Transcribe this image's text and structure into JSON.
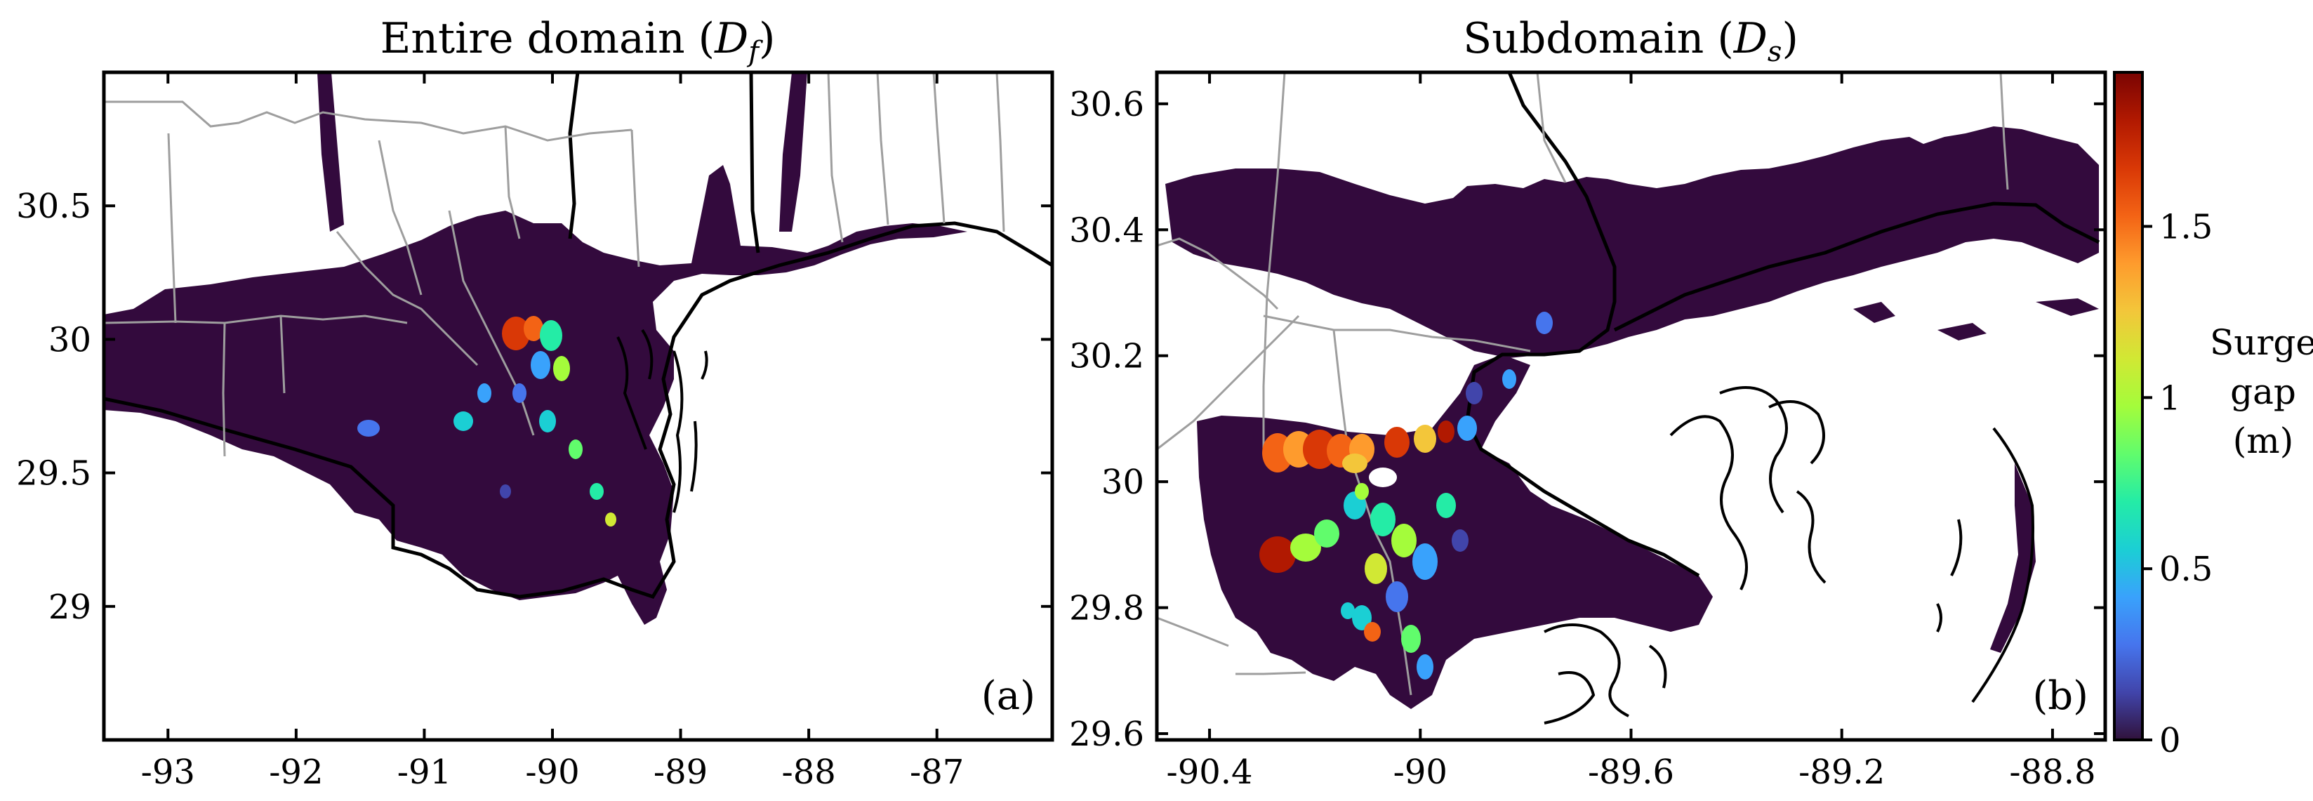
{
  "chart_data": [
    {
      "type": "heatmap",
      "title_main": "Entire domain (",
      "title_sym": "D",
      "title_sub": "f",
      "title_close": ")",
      "panel_label": "(a)",
      "xlim": [
        -93.5,
        -86.1
      ],
      "ylim": [
        28.5,
        31.0
      ],
      "xticks": [
        -93,
        -92,
        -91,
        -90,
        -89,
        -88,
        -87
      ],
      "xtick_labels": [
        "-93",
        "-92",
        "-91",
        "-90",
        "-89",
        "-88",
        "-87"
      ],
      "yticks": [
        29,
        29.5,
        30,
        30.5
      ],
      "ytick_labels": [
        "29",
        "29.5",
        "30",
        "30.5"
      ],
      "grid": false,
      "background_color": "#ffffff",
      "land_fill_color": "#330a3d",
      "coastline_color": "#000000",
      "boundary_color": "#9e9e9e"
    },
    {
      "type": "heatmap",
      "title_main": "Subdomain (",
      "title_sym": "D",
      "title_sub": "s",
      "title_close": ")",
      "panel_label": "(b)",
      "xlim": [
        -90.5,
        -88.7
      ],
      "ylim": [
        29.59,
        30.65
      ],
      "xticks": [
        -90.4,
        -90,
        -89.6,
        -89.2,
        -88.8
      ],
      "xtick_labels": [
        "-90.4",
        "-90",
        "-89.6",
        "-89.2",
        "-88.8"
      ],
      "yticks": [
        29.6,
        29.8,
        30,
        30.2,
        30.4,
        30.6
      ],
      "ytick_labels": [
        "29.6",
        "29.8",
        "30",
        "30.2",
        "30.4",
        "30.6"
      ],
      "grid": false,
      "background_color": "#ffffff",
      "land_fill_color": "#330a3d",
      "coastline_color": "#000000",
      "boundary_color": "#9e9e9e"
    }
  ],
  "colorbar": {
    "label_lines": [
      "Surge",
      "gap",
      "(m)"
    ],
    "range": [
      0,
      1.95
    ],
    "ticks": [
      0,
      0.5,
      1,
      1.5
    ],
    "tick_labels": [
      "0",
      "0.5",
      "1",
      "1.5"
    ],
    "colormap": [
      "#30123b",
      "#4145ab",
      "#4675ed",
      "#39a2fc",
      "#1bcfd4",
      "#24eca6",
      "#61fc6c",
      "#a4fc3b",
      "#d1e834",
      "#f3c63a",
      "#fe9b2d",
      "#f36315",
      "#d93806",
      "#b11901",
      "#7a0402"
    ]
  }
}
